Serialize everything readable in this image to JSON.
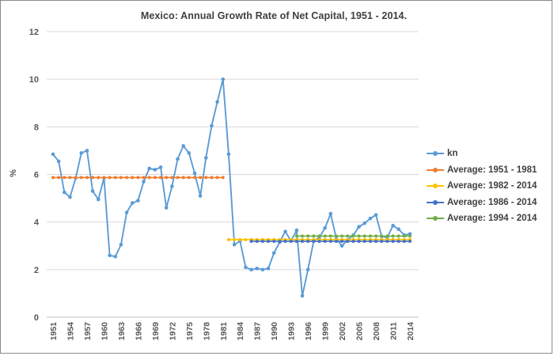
{
  "title": "Mexico: Annual Growth Rate of Net Capital, 1951 - 2014.",
  "y_axis_label": "%",
  "chart_data": {
    "type": "line",
    "title": "Mexico: Annual Growth Rate of Net Capital, 1951 - 2014.",
    "xlabel": "",
    "ylabel": "%",
    "ylim": [
      0,
      12
    ],
    "yticks": [
      0,
      2,
      4,
      6,
      8,
      10,
      12
    ],
    "xticks": [
      "1951",
      "1954",
      "1957",
      "1960",
      "1963",
      "1966",
      "1969",
      "1972",
      "1975",
      "1978",
      "1981",
      "1984",
      "1987",
      "1990",
      "1993",
      "1996",
      "1999",
      "2002",
      "2005",
      "2008",
      "2011",
      "2014"
    ],
    "x_start_year": 1951,
    "x_end_year": 2014,
    "grid": "horizontal",
    "legend_position": "right",
    "series": [
      {
        "name": "kn",
        "type": "line+markers",
        "color": "#5B9BD5",
        "start_year": 1951,
        "values": [
          6.85,
          6.55,
          5.25,
          5.05,
          5.85,
          6.9,
          7.0,
          5.3,
          4.95,
          5.85,
          2.6,
          2.55,
          3.05,
          4.4,
          4.8,
          4.9,
          5.7,
          6.25,
          6.2,
          6.3,
          4.6,
          5.5,
          6.65,
          7.2,
          6.9,
          6.05,
          5.1,
          6.7,
          8.05,
          9.05,
          10.0,
          6.85,
          3.05,
          3.2,
          2.1,
          2.0,
          2.05,
          2.0,
          2.05,
          2.7,
          3.15,
          3.6,
          3.2,
          3.65,
          0.9,
          2.0,
          3.2,
          3.35,
          3.75,
          4.35,
          3.3,
          3.0,
          3.25,
          3.45,
          3.8,
          3.95,
          4.15,
          4.3,
          3.4,
          3.35,
          3.85,
          3.7,
          3.45,
          3.5
        ]
      },
      {
        "name": "Average: 1951 - 1981",
        "type": "constant",
        "color": "#ED7D31",
        "start_year": 1951,
        "end_year": 1981,
        "value": 5.87
      },
      {
        "name": "Average: 1982 - 2014",
        "type": "constant",
        "color": "#FFC000",
        "start_year": 1982,
        "end_year": 2014,
        "value": 3.26
      },
      {
        "name": "Average: 1986 - 2014",
        "type": "constant",
        "color": "#4472C4",
        "start_year": 1986,
        "end_year": 2014,
        "value": 3.19
      },
      {
        "name": "Average: 1994 - 2014",
        "type": "constant",
        "color": "#70AD47",
        "start_year": 1994,
        "end_year": 2014,
        "value": 3.41
      }
    ]
  }
}
